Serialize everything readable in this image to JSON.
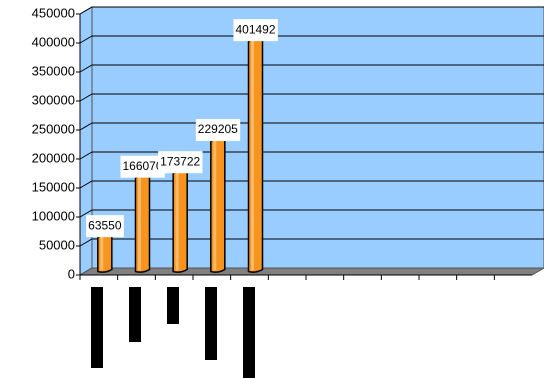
{
  "chart_data": {
    "type": "bar3d",
    "categories": [
      null,
      null,
      null,
      null,
      null,
      null,
      null,
      null,
      null,
      null,
      null,
      null
    ],
    "values": [
      63550,
      166070,
      173722,
      229205,
      401492,
      null,
      null,
      null,
      null,
      null,
      null,
      null
    ],
    "color": "#f7941d",
    "ylim": [
      0,
      450000
    ],
    "yticks": [
      0,
      50000,
      100000,
      150000,
      200000,
      250000,
      300000,
      350000,
      400000,
      450000
    ],
    "grid": true
  }
}
